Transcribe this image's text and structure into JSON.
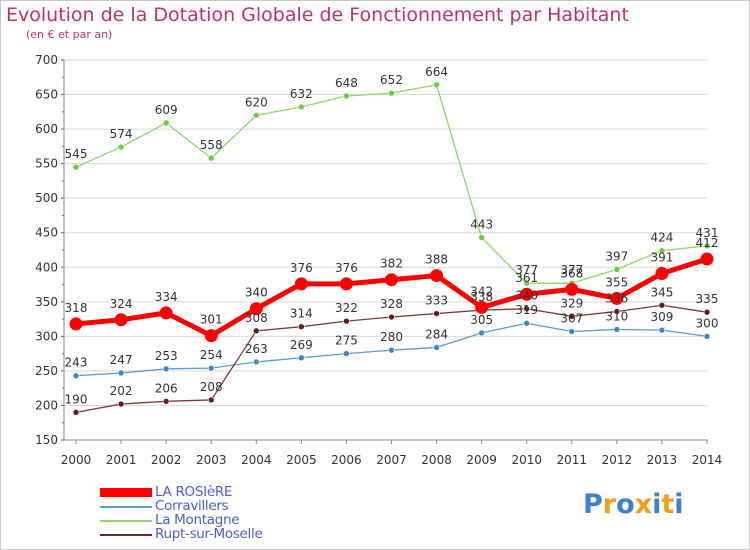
{
  "chart_data": {
    "type": "line",
    "title": "Evolution de la Dotation Globale de Fonctionnement par Habitant",
    "subtitle": "(en € et par an)",
    "x": [
      "2000",
      "2001",
      "2002",
      "2003",
      "2004",
      "2005",
      "2006",
      "2007",
      "2008",
      "2009",
      "2010",
      "2011",
      "2012",
      "2013",
      "2014"
    ],
    "ylim": [
      150,
      700
    ],
    "yticks": [
      150,
      200,
      250,
      300,
      350,
      400,
      450,
      500,
      550,
      600,
      650,
      700
    ],
    "grid": "horizontal",
    "legend_position": "bottom-left",
    "series": [
      {
        "name": "LA ROSIèRE",
        "color": "#ff0000",
        "values": [
          318,
          324,
          334,
          301,
          340,
          376,
          376,
          382,
          388,
          342,
          361,
          368,
          355,
          391,
          412
        ]
      },
      {
        "name": "Corravillers",
        "color": "#5b9bcc",
        "values": [
          243,
          247,
          253,
          254,
          263,
          269,
          275,
          280,
          284,
          305,
          319,
          307,
          310,
          309,
          300
        ]
      },
      {
        "name": "La Montagne",
        "color": "#8fd66a",
        "values": [
          545,
          574,
          609,
          558,
          620,
          632,
          648,
          652,
          664,
          443,
          377,
          377,
          397,
          424,
          431
        ]
      },
      {
        "name": "Rupt-sur-Moselle",
        "color": "#6b2a2a",
        "values": [
          190,
          202,
          206,
          208,
          308,
          314,
          322,
          328,
          333,
          338,
          340,
          329,
          336,
          345,
          335
        ]
      }
    ]
  },
  "logo": {
    "letters": [
      "P",
      "r",
      "o",
      "x",
      "i",
      "t",
      "i"
    ],
    "colors": [
      "#3d7fd0",
      "#f2a01c",
      "#3d7fd0",
      "#f2a01c",
      "#3d7fd0",
      "#f2a01c",
      "#3d7fd0"
    ]
  }
}
